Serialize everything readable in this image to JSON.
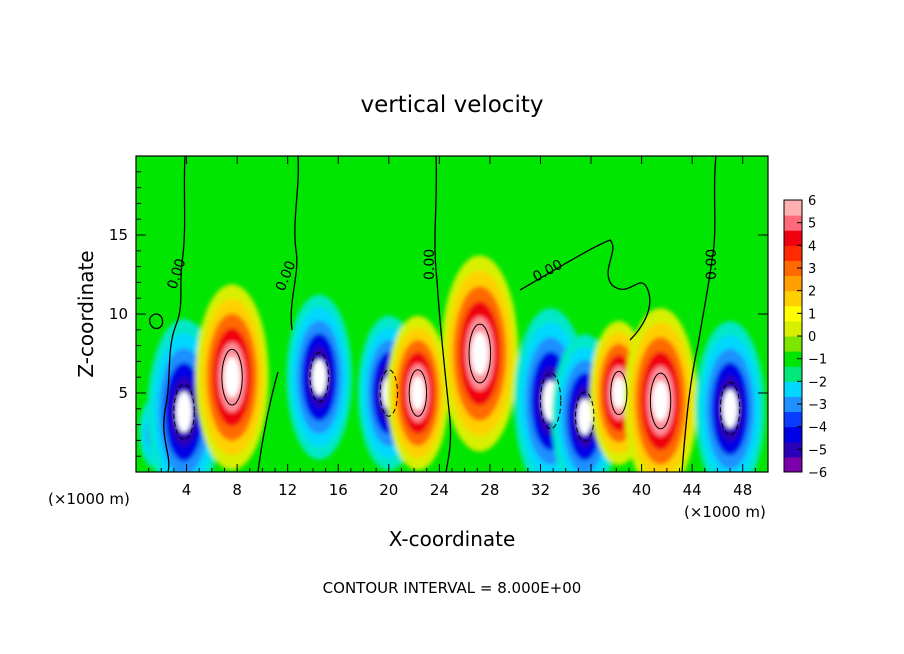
{
  "chart_data": {
    "type": "heatmap",
    "title": "vertical velocity",
    "xlabel": "X-coordinate",
    "ylabel": "Z-coordinate",
    "x_unit_left": "(×1000 m)",
    "x_unit_right": "(×1000 m)",
    "footnote": "CONTOUR INTERVAL = 8.000E+00",
    "xlim": [
      0,
      50
    ],
    "ylim": [
      0,
      20
    ],
    "x_ticks": [
      4,
      8,
      12,
      16,
      20,
      24,
      28,
      32,
      36,
      40,
      44,
      48
    ],
    "y_ticks": [
      5,
      10,
      15
    ],
    "colorbar": {
      "min": -6,
      "max": 6,
      "ticks": [
        6,
        5,
        4,
        3,
        2,
        1,
        0,
        -1,
        -2,
        -3,
        -4,
        -5,
        -6
      ],
      "colors": [
        "#7a00a8",
        "#2a00b8",
        "#0000e6",
        "#0a3cff",
        "#1e90ff",
        "#00d8ff",
        "#00e87a",
        "#00e600",
        "#7ce600",
        "#d8f000",
        "#ffff00",
        "#ffd000",
        "#ffa000",
        "#ff6a00",
        "#ff2a00",
        "#f00010",
        "#ff6a7a",
        "#ffb0b0"
      ]
    },
    "contour_labels": [
      "0.00",
      "0.00",
      "0.00",
      "0.00",
      "0.00"
    ],
    "features": [
      {
        "x": 1.5,
        "z": 2.5,
        "w": -3
      },
      {
        "x": 3.8,
        "z": 3.8,
        "w": -14
      },
      {
        "x": 7.6,
        "z": 6.0,
        "w": 14
      },
      {
        "x": 14.5,
        "z": 6.0,
        "w": -12
      },
      {
        "x": 20.0,
        "z": 5.0,
        "w": -11
      },
      {
        "x": 22.3,
        "z": 5.0,
        "w": 11
      },
      {
        "x": 27.2,
        "z": 7.5,
        "w": 15
      },
      {
        "x": 32.8,
        "z": 4.5,
        "w": -14
      },
      {
        "x": 35.5,
        "z": 3.5,
        "w": -12
      },
      {
        "x": 38.2,
        "z": 5.0,
        "w": 10
      },
      {
        "x": 41.5,
        "z": 4.5,
        "w": 14
      },
      {
        "x": 47.0,
        "z": 4.0,
        "w": -13
      }
    ]
  }
}
